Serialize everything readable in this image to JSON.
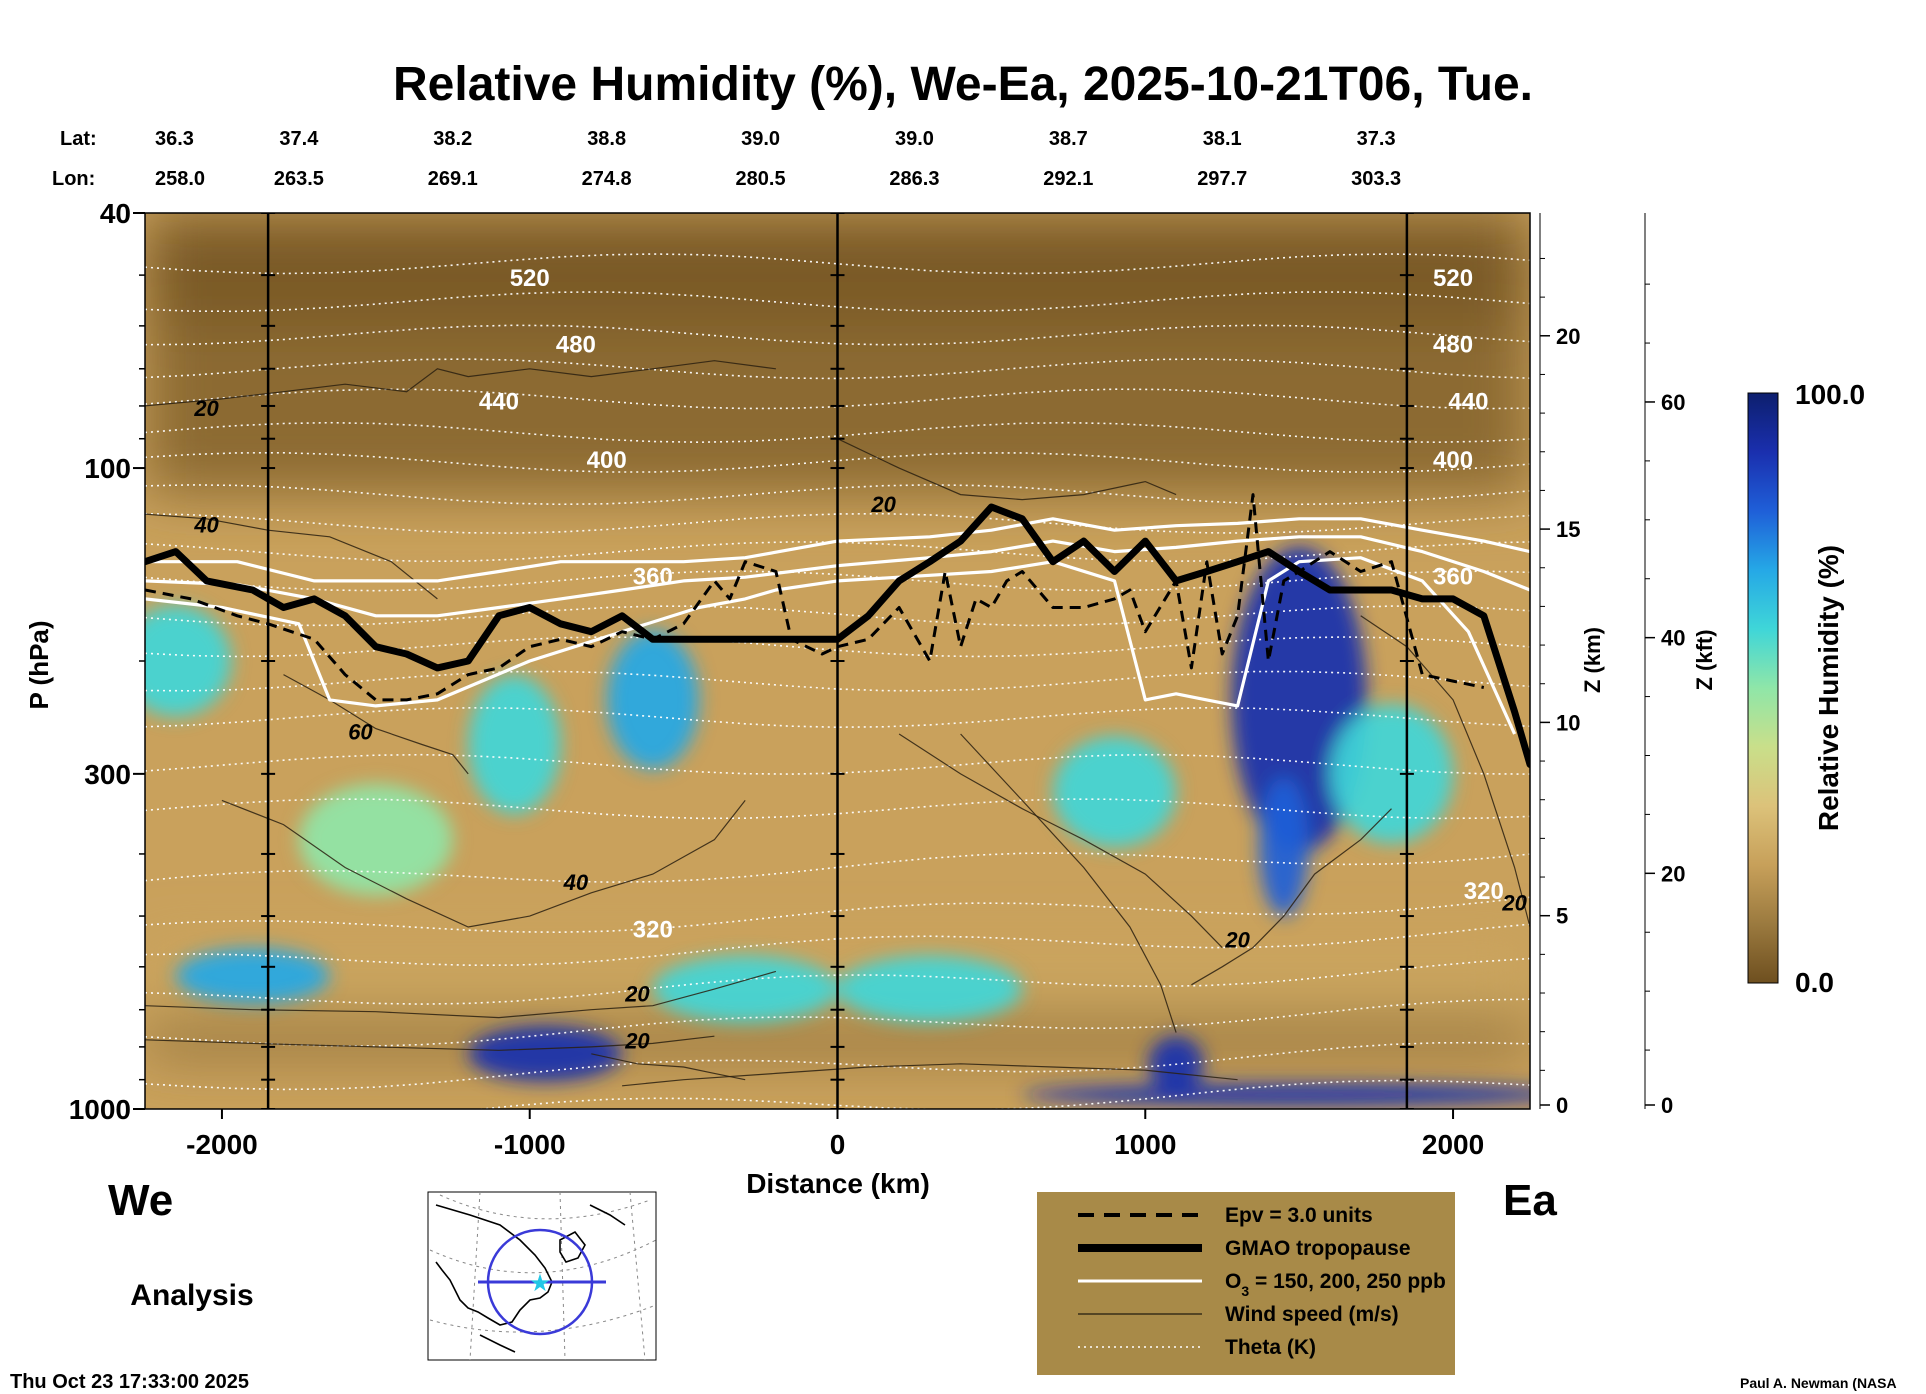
{
  "chart_data": {
    "type": "heatmap",
    "title": "Relative Humidity (%), We-Ea, 2025-10-21T06, Tue.",
    "xlabel": "Distance (km)",
    "ylabel_left": "P (hPa)",
    "ylabel_right_km": "Z (km)",
    "ylabel_right_kft": "Z (kft)",
    "xlim": [
      -2250,
      2250
    ],
    "ylim_hpa": [
      1000,
      40
    ],
    "x_ticks": [
      -2000,
      -1000,
      0,
      1000,
      2000
    ],
    "p_ticks": [
      1000,
      300,
      100,
      40
    ],
    "z_km_ticks": [
      0,
      5,
      10,
      15,
      20
    ],
    "z_kft_ticks": [
      0,
      20,
      40,
      60
    ],
    "lat_header": "Lat:",
    "lon_header": "Lon:",
    "lat": [
      "36.3",
      "37.4",
      "38.2",
      "38.8",
      "39.0",
      "39.0",
      "38.7",
      "38.1",
      "37.3"
    ],
    "lon": [
      "258.0",
      "263.5",
      "269.1",
      "274.8",
      "280.5",
      "286.3",
      "292.1",
      "297.7",
      "303.3"
    ],
    "station_x_km": [
      -2250,
      -1750,
      -1250,
      -750,
      -250,
      250,
      750,
      1250,
      1750
    ],
    "section_markers_km": [
      -1850,
      0,
      1850
    ],
    "left_label": "We",
    "right_label": "Ea",
    "analysis_label": "Analysis",
    "timestamp": "Thu Oct 23 17:33:00 2025",
    "credit": "Paul A. Newman (NASA",
    "colorbar": {
      "label": "Relative Humidity (%)",
      "max_label": "100.0",
      "min_label": "0.0",
      "range": [
        0,
        100
      ],
      "stops": [
        "#6e4f1f",
        "#9b7a3f",
        "#c7a05a",
        "#dcc27a",
        "#c9df8a",
        "#8fe6a8",
        "#3fd6d8",
        "#25a8e6",
        "#1f5fd8",
        "#1a2fae",
        "#0d1f6e"
      ]
    },
    "theta_labels": [
      {
        "x": -1000,
        "p": 52,
        "text": "520"
      },
      {
        "x": 2000,
        "p": 52,
        "text": "520"
      },
      {
        "x": -850,
        "p": 66,
        "text": "480"
      },
      {
        "x": 2000,
        "p": 66,
        "text": "480"
      },
      {
        "x": -1100,
        "p": 81,
        "text": "440"
      },
      {
        "x": 2050,
        "p": 81,
        "text": "440"
      },
      {
        "x": -750,
        "p": 100,
        "text": "400"
      },
      {
        "x": 2000,
        "p": 100,
        "text": "400"
      },
      {
        "x": -600,
        "p": 152,
        "text": "360"
      },
      {
        "x": 2000,
        "p": 152,
        "text": "360"
      },
      {
        "x": -600,
        "p": 540,
        "text": "320"
      },
      {
        "x": 2100,
        "p": 470,
        "text": "320"
      }
    ],
    "wind_labels": [
      {
        "x": -2050,
        "p": 83,
        "text": "20"
      },
      {
        "x": -2050,
        "p": 126,
        "text": "40"
      },
      {
        "x": 150,
        "p": 117,
        "text": "20"
      },
      {
        "x": -1550,
        "p": 265,
        "text": "60"
      },
      {
        "x": -850,
        "p": 455,
        "text": "40"
      },
      {
        "x": -650,
        "p": 680,
        "text": "20"
      },
      {
        "x": -650,
        "p": 805,
        "text": "20"
      },
      {
        "x": 1300,
        "p": 560,
        "text": "20"
      },
      {
        "x": 2200,
        "p": 490,
        "text": "20"
      }
    ],
    "tropopause": {
      "name": "GMAO tropopause",
      "x": [
        -2250,
        -2150,
        -2050,
        -1900,
        -1800,
        -1700,
        -1600,
        -1500,
        -1400,
        -1300,
        -1200,
        -1100,
        -1000,
        -900,
        -800,
        -700,
        -600,
        -500,
        -300,
        0,
        100,
        200,
        300,
        400,
        500,
        600,
        700,
        800,
        900,
        1000,
        1100,
        1200,
        1300,
        1400,
        1500,
        1600,
        1700,
        1800,
        1900,
        2000,
        2100,
        2200,
        2250
      ],
      "p": [
        140,
        135,
        150,
        155,
        165,
        160,
        170,
        190,
        195,
        205,
        200,
        170,
        165,
        175,
        180,
        170,
        185,
        185,
        185,
        185,
        170,
        150,
        140,
        130,
        115,
        120,
        140,
        130,
        145,
        130,
        150,
        145,
        140,
        135,
        145,
        155,
        155,
        155,
        160,
        160,
        170,
        240,
        290
      ]
    },
    "epv_line": {
      "name": "Epv = 3.0 units",
      "x": [
        -2250,
        -2100,
        -1950,
        -1850,
        -1700,
        -1600,
        -1500,
        -1400,
        -1300,
        -1200,
        -1100,
        -1000,
        -900,
        -800,
        -700,
        -600,
        -500,
        -400,
        -350,
        -300,
        -200,
        -150,
        -100,
        -50,
        0,
        100,
        200,
        300,
        350,
        400,
        450,
        500,
        550,
        600,
        700,
        800,
        900,
        950,
        1000,
        1100,
        1150,
        1200,
        1250,
        1300,
        1350,
        1400,
        1450,
        1500,
        1600,
        1700,
        1800,
        1900,
        2000,
        2100
      ],
      "p": [
        155,
        160,
        170,
        175,
        185,
        210,
        230,
        230,
        225,
        210,
        205,
        190,
        185,
        190,
        180,
        185,
        175,
        150,
        160,
        140,
        145,
        185,
        190,
        195,
        190,
        185,
        165,
        200,
        145,
        190,
        160,
        165,
        150,
        145,
        165,
        165,
        160,
        155,
        180,
        150,
        205,
        140,
        195,
        170,
        110,
        200,
        150,
        145,
        135,
        145,
        140,
        210,
        215,
        220
      ]
    },
    "ozone_contours": [
      {
        "name": "O3 = 150",
        "x": [
          -2250,
          -1950,
          -1700,
          -1500,
          -1300,
          -1100,
          -900,
          -700,
          -500,
          -300,
          0,
          300,
          500,
          700,
          900,
          1100,
          1300,
          1500,
          1700,
          1900,
          2100,
          2250
        ],
        "p": [
          140,
          140,
          150,
          150,
          150,
          145,
          140,
          140,
          140,
          138,
          130,
          128,
          125,
          120,
          125,
          123,
          122,
          120,
          120,
          125,
          130,
          135
        ]
      },
      {
        "name": "O3 = 200",
        "x": [
          -2250,
          -1950,
          -1700,
          -1500,
          -1300,
          -1100,
          -900,
          -700,
          -500,
          -300,
          0,
          300,
          500,
          700,
          900,
          1100,
          1300,
          1500,
          1700,
          1900,
          2100,
          2250
        ],
        "p": [
          150,
          152,
          160,
          170,
          170,
          165,
          160,
          155,
          150,
          148,
          142,
          138,
          135,
          130,
          135,
          133,
          130,
          128,
          128,
          135,
          145,
          155
        ]
      },
      {
        "name": "O3 = 250",
        "x": [
          -2250,
          -2000,
          -1750,
          -1650,
          -1500,
          -1300,
          -1000,
          -700,
          -450,
          -300,
          -200,
          0,
          200,
          500,
          700,
          900,
          1000,
          1100,
          1200,
          1300,
          1400,
          1500,
          1700,
          1900,
          2050,
          2200
        ],
        "p": [
          160,
          165,
          175,
          230,
          235,
          230,
          200,
          180,
          165,
          160,
          155,
          150,
          148,
          145,
          140,
          150,
          230,
          225,
          230,
          235,
          150,
          140,
          138,
          150,
          180,
          260
        ]
      }
    ],
    "legend": [
      {
        "style": "dashed",
        "label": "Epv = 3.0 units"
      },
      {
        "style": "thick",
        "label": "GMAO tropopause"
      },
      {
        "style": "white",
        "label_prefix": "O",
        "label_sub": "3",
        "label_suffix": " = 150, 200, 250 ppb"
      },
      {
        "style": "thin",
        "label": "Wind speed (m/s)"
      },
      {
        "style": "dotted",
        "label": "Theta (K)"
      }
    ],
    "humidity_blobs": [
      {
        "x": 1500,
        "p": 230,
        "rx": 220,
        "rp": 0.55,
        "rh": 92
      },
      {
        "x": 1450,
        "p": 390,
        "rx": 80,
        "rp": 0.25,
        "rh": 75
      },
      {
        "x": 1100,
        "p": 850,
        "rx": 90,
        "rp": 0.1,
        "rh": 90
      },
      {
        "x": 1500,
        "p": 950,
        "rx": 900,
        "rp": 0.04,
        "rh": 90
      },
      {
        "x": -950,
        "p": 820,
        "rx": 250,
        "rp": 0.1,
        "rh": 88
      },
      {
        "x": -1900,
        "p": 620,
        "rx": 250,
        "rp": 0.1,
        "rh": 68
      },
      {
        "x": -600,
        "p": 230,
        "rx": 150,
        "rp": 0.25,
        "rh": 65
      },
      {
        "x": -1050,
        "p": 270,
        "rx": 150,
        "rp": 0.25,
        "rh": 58
      },
      {
        "x": -2150,
        "p": 200,
        "rx": 180,
        "rp": 0.2,
        "rh": 60
      },
      {
        "x": 900,
        "p": 320,
        "rx": 200,
        "rp": 0.2,
        "rh": 55
      },
      {
        "x": 1800,
        "p": 300,
        "rx": 200,
        "rp": 0.25,
        "rh": 55
      },
      {
        "x": -300,
        "p": 650,
        "rx": 300,
        "rp": 0.12,
        "rh": 55
      },
      {
        "x": 300,
        "p": 650,
        "rx": 300,
        "rp": 0.12,
        "rh": 58
      },
      {
        "x": -1500,
        "p": 380,
        "rx": 250,
        "rp": 0.2,
        "rh": 52
      }
    ]
  }
}
